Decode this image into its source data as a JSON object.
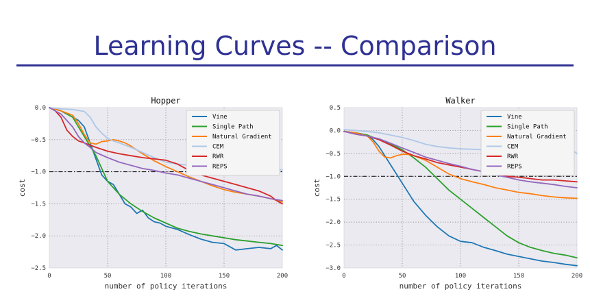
{
  "slide": {
    "title": "Learning Curves -- Comparison"
  },
  "chart_data": [
    {
      "type": "line",
      "title": "Hopper",
      "xlabel": "number of policy iterations",
      "ylabel": "cost",
      "xlim": [
        0,
        200
      ],
      "ylim": [
        -2.5,
        0.0
      ],
      "xticks": [
        0,
        50,
        100,
        150,
        200
      ],
      "yticks": [
        0.0,
        -0.5,
        -1.0,
        -1.5,
        -2.0,
        -2.5
      ],
      "ytick_labels": [
        "0.0",
        "−0.5",
        "−1.0",
        "−1.5",
        "−2.0",
        "−2.5"
      ],
      "grid": true,
      "legend_position": "top-right",
      "reference_line": {
        "y": -1.0,
        "style": "dash-dot"
      },
      "series": [
        {
          "name": "Vine",
          "color": "#1f77b4",
          "x": [
            0,
            10,
            20,
            25,
            30,
            35,
            40,
            45,
            50,
            55,
            60,
            65,
            70,
            75,
            80,
            85,
            90,
            95,
            100,
            110,
            120,
            130,
            140,
            150,
            160,
            170,
            180,
            190,
            195,
            200
          ],
          "y": [
            0,
            -0.05,
            -0.15,
            -0.2,
            -0.3,
            -0.55,
            -0.8,
            -1.05,
            -1.15,
            -1.2,
            -1.35,
            -1.5,
            -1.55,
            -1.65,
            -1.6,
            -1.72,
            -1.78,
            -1.8,
            -1.85,
            -1.9,
            -1.98,
            -2.05,
            -2.1,
            -2.12,
            -2.22,
            -2.2,
            -2.18,
            -2.2,
            -2.15,
            -2.22
          ]
        },
        {
          "name": "Single Path",
          "color": "#2ca02c",
          "x": [
            0,
            10,
            20,
            25,
            30,
            35,
            40,
            45,
            50,
            60,
            70,
            80,
            90,
            100,
            110,
            120,
            130,
            140,
            150,
            160,
            170,
            180,
            190,
            200
          ],
          "y": [
            0,
            -0.05,
            -0.15,
            -0.3,
            -0.45,
            -0.6,
            -0.75,
            -0.95,
            -1.15,
            -1.35,
            -1.5,
            -1.62,
            -1.72,
            -1.8,
            -1.88,
            -1.93,
            -1.97,
            -2.0,
            -2.03,
            -2.06,
            -2.08,
            -2.1,
            -2.12,
            -2.15
          ]
        },
        {
          "name": "Natural Gradient",
          "color": "#ff7f0e",
          "x": [
            0,
            10,
            20,
            25,
            30,
            35,
            40,
            45,
            50,
            55,
            60,
            65,
            70,
            80,
            90,
            100,
            110,
            120,
            130,
            140,
            150,
            160,
            170,
            180,
            190,
            200
          ],
          "y": [
            0,
            -0.05,
            -0.12,
            -0.25,
            -0.42,
            -0.55,
            -0.57,
            -0.53,
            -0.52,
            -0.5,
            -0.52,
            -0.55,
            -0.6,
            -0.72,
            -0.83,
            -0.92,
            -1.0,
            -1.08,
            -1.15,
            -1.22,
            -1.28,
            -1.32,
            -1.35,
            -1.38,
            -1.42,
            -1.47
          ]
        },
        {
          "name": "CEM",
          "color": "#aec7e8",
          "x": [
            0,
            10,
            20,
            30,
            35,
            40,
            45,
            50,
            55,
            60,
            70,
            80,
            90,
            100,
            110,
            120,
            130,
            140,
            150,
            160,
            170,
            180,
            190,
            200
          ],
          "y": [
            0,
            -0.02,
            -0.03,
            -0.06,
            -0.15,
            -0.3,
            -0.4,
            -0.48,
            -0.52,
            -0.55,
            -0.62,
            -0.7,
            -0.78,
            -0.85,
            -0.88,
            -0.9,
            -0.91,
            -0.92,
            -0.93,
            -0.94,
            -0.95,
            -0.95,
            -0.96,
            -0.97
          ]
        },
        {
          "name": "RWR",
          "color": "#d62728",
          "x": [
            0,
            5,
            10,
            15,
            20,
            25,
            30,
            40,
            50,
            60,
            70,
            80,
            90,
            100,
            110,
            120,
            130,
            140,
            150,
            160,
            170,
            180,
            190,
            195,
            200
          ],
          "y": [
            0,
            -0.05,
            -0.15,
            -0.35,
            -0.45,
            -0.52,
            -0.55,
            -0.62,
            -0.68,
            -0.72,
            -0.75,
            -0.78,
            -0.8,
            -0.82,
            -0.88,
            -0.98,
            -1.05,
            -1.1,
            -1.15,
            -1.2,
            -1.25,
            -1.3,
            -1.38,
            -1.45,
            -1.5
          ]
        },
        {
          "name": "REPS",
          "color": "#9467bd",
          "x": [
            0,
            10,
            20,
            25,
            30,
            35,
            40,
            50,
            60,
            70,
            80,
            90,
            100,
            110,
            120,
            130,
            140,
            150,
            160,
            170,
            180,
            190,
            200
          ],
          "y": [
            0,
            -0.1,
            -0.3,
            -0.45,
            -0.55,
            -0.62,
            -0.7,
            -0.78,
            -0.85,
            -0.9,
            -0.95,
            -0.98,
            -1.02,
            -1.05,
            -1.1,
            -1.15,
            -1.2,
            -1.25,
            -1.3,
            -1.35,
            -1.38,
            -1.42,
            -1.45
          ]
        }
      ]
    },
    {
      "type": "line",
      "title": "Walker",
      "xlabel": "number of policy iterations",
      "ylabel": "cost",
      "xlim": [
        0,
        200
      ],
      "ylim": [
        -3.0,
        0.5
      ],
      "xticks": [
        0,
        50,
        100,
        150,
        200
      ],
      "yticks": [
        0.5,
        0.0,
        -0.5,
        -1.0,
        -1.5,
        -2.0,
        -2.5,
        -3.0
      ],
      "ytick_labels": [
        "0.5",
        "0.0",
        "−0.5",
        "−1.0",
        "−1.5",
        "−2.0",
        "−2.5",
        "−3.0"
      ],
      "grid": true,
      "legend_position": "top-right",
      "reference_line": {
        "y": -1.0,
        "style": "dashed"
      },
      "series": [
        {
          "name": "Vine",
          "color": "#1f77b4",
          "x": [
            0,
            10,
            20,
            25,
            30,
            35,
            40,
            45,
            50,
            55,
            60,
            70,
            80,
            90,
            100,
            110,
            120,
            130,
            140,
            150,
            160,
            170,
            180,
            190,
            200
          ],
          "y": [
            -0.02,
            -0.05,
            -0.1,
            -0.2,
            -0.35,
            -0.55,
            -0.75,
            -0.95,
            -1.15,
            -1.35,
            -1.55,
            -1.85,
            -2.1,
            -2.3,
            -2.42,
            -2.45,
            -2.55,
            -2.62,
            -2.7,
            -2.75,
            -2.8,
            -2.85,
            -2.88,
            -2.92,
            -2.95
          ]
        },
        {
          "name": "Single Path",
          "color": "#2ca02c",
          "x": [
            0,
            10,
            20,
            30,
            40,
            50,
            60,
            70,
            80,
            90,
            100,
            110,
            120,
            130,
            140,
            150,
            160,
            170,
            180,
            190,
            200
          ],
          "y": [
            -0.02,
            -0.05,
            -0.1,
            -0.2,
            -0.3,
            -0.42,
            -0.6,
            -0.8,
            -1.05,
            -1.3,
            -1.5,
            -1.7,
            -1.9,
            -2.1,
            -2.3,
            -2.45,
            -2.55,
            -2.62,
            -2.68,
            -2.72,
            -2.78
          ]
        },
        {
          "name": "Natural Gradient",
          "color": "#ff7f0e",
          "x": [
            0,
            10,
            20,
            25,
            30,
            35,
            40,
            45,
            50,
            55,
            60,
            70,
            80,
            90,
            100,
            110,
            120,
            130,
            140,
            150,
            160,
            170,
            180,
            190,
            200
          ],
          "y": [
            -0.02,
            -0.05,
            -0.12,
            -0.25,
            -0.45,
            -0.58,
            -0.6,
            -0.55,
            -0.52,
            -0.52,
            -0.55,
            -0.65,
            -0.8,
            -0.95,
            -1.05,
            -1.12,
            -1.18,
            -1.25,
            -1.3,
            -1.35,
            -1.38,
            -1.42,
            -1.45,
            -1.47,
            -1.48
          ]
        },
        {
          "name": "CEM",
          "color": "#aec7e8",
          "x": [
            0,
            10,
            20,
            30,
            40,
            50,
            60,
            70,
            80,
            90,
            100,
            110,
            120,
            130,
            140,
            150,
            160,
            170,
            180,
            190,
            195,
            200
          ],
          "y": [
            0.02,
            0.0,
            -0.02,
            -0.05,
            -0.1,
            -0.15,
            -0.22,
            -0.3,
            -0.35,
            -0.38,
            -0.4,
            -0.41,
            -0.42,
            -0.43,
            -0.43,
            -0.43,
            -0.44,
            -0.45,
            -0.45,
            -0.46,
            -0.42,
            -0.5
          ]
        },
        {
          "name": "RWR",
          "color": "#d62728",
          "x": [
            0,
            10,
            20,
            30,
            40,
            50,
            60,
            70,
            80,
            90,
            100,
            110,
            120,
            130,
            140,
            150,
            160,
            170,
            180,
            190,
            200
          ],
          "y": [
            -0.02,
            -0.08,
            -0.12,
            -0.2,
            -0.32,
            -0.45,
            -0.55,
            -0.62,
            -0.7,
            -0.75,
            -0.8,
            -0.85,
            -0.9,
            -0.95,
            -1.0,
            -1.02,
            -1.05,
            -1.08,
            -1.08,
            -1.1,
            -1.12
          ]
        },
        {
          "name": "REPS",
          "color": "#9467bd",
          "x": [
            0,
            10,
            20,
            30,
            40,
            50,
            60,
            70,
            80,
            90,
            100,
            110,
            120,
            130,
            140,
            150,
            160,
            170,
            180,
            190,
            200
          ],
          "y": [
            -0.02,
            -0.08,
            -0.12,
            -0.18,
            -0.28,
            -0.38,
            -0.48,
            -0.58,
            -0.65,
            -0.72,
            -0.78,
            -0.85,
            -0.9,
            -0.97,
            -1.02,
            -1.08,
            -1.12,
            -1.15,
            -1.18,
            -1.22,
            -1.25
          ]
        }
      ]
    }
  ]
}
